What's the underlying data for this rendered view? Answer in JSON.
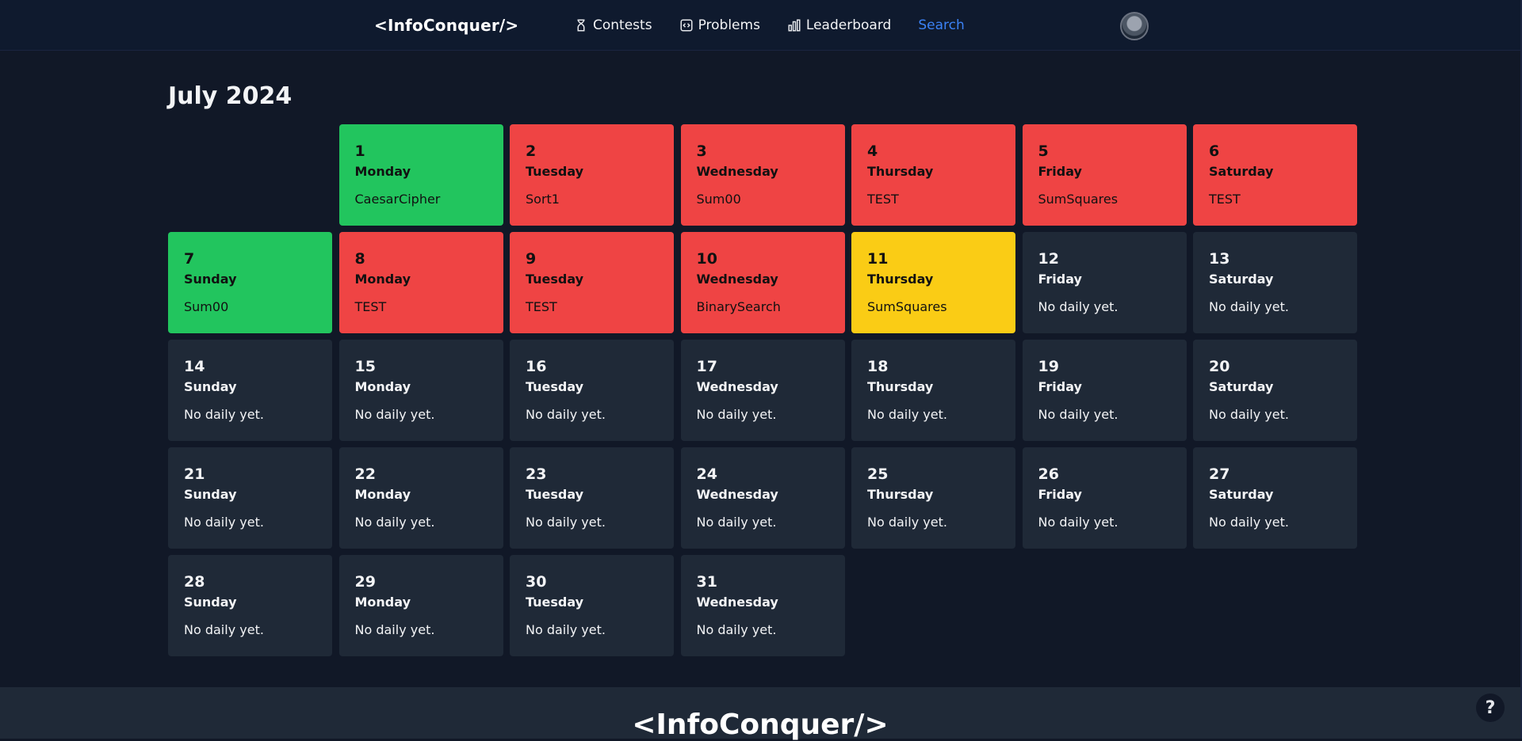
{
  "header": {
    "logo": "<InfoConquer/>",
    "nav": [
      {
        "label": "Contests",
        "icon": "hourglass-icon"
      },
      {
        "label": "Problems",
        "icon": "code-icon"
      },
      {
        "label": "Leaderboard",
        "icon": "bar-chart-icon"
      },
      {
        "label": "Search"
      }
    ]
  },
  "calendar": {
    "title": "July 2024",
    "days": [
      {
        "num": "1",
        "name": "Monday",
        "problem": "CaesarCipher",
        "status": "green"
      },
      {
        "num": "2",
        "name": "Tuesday",
        "problem": "Sort1",
        "status": "red"
      },
      {
        "num": "3",
        "name": "Wednesday",
        "problem": "Sum00",
        "status": "red"
      },
      {
        "num": "4",
        "name": "Thursday",
        "problem": "TEST",
        "status": "red"
      },
      {
        "num": "5",
        "name": "Friday",
        "problem": "SumSquares",
        "status": "red"
      },
      {
        "num": "6",
        "name": "Saturday",
        "problem": "TEST",
        "status": "red"
      },
      {
        "num": "7",
        "name": "Sunday",
        "problem": "Sum00",
        "status": "green"
      },
      {
        "num": "8",
        "name": "Monday",
        "problem": "TEST",
        "status": "red"
      },
      {
        "num": "9",
        "name": "Tuesday",
        "problem": "TEST",
        "status": "red"
      },
      {
        "num": "10",
        "name": "Wednesday",
        "problem": "BinarySearch",
        "status": "red"
      },
      {
        "num": "11",
        "name": "Thursday",
        "problem": "SumSquares",
        "status": "yellow"
      },
      {
        "num": "12",
        "name": "Friday",
        "problem": "No daily yet.",
        "status": "none"
      },
      {
        "num": "13",
        "name": "Saturday",
        "problem": "No daily yet.",
        "status": "none"
      },
      {
        "num": "14",
        "name": "Sunday",
        "problem": "No daily yet.",
        "status": "none"
      },
      {
        "num": "15",
        "name": "Monday",
        "problem": "No daily yet.",
        "status": "none"
      },
      {
        "num": "16",
        "name": "Tuesday",
        "problem": "No daily yet.",
        "status": "none"
      },
      {
        "num": "17",
        "name": "Wednesday",
        "problem": "No daily yet.",
        "status": "none"
      },
      {
        "num": "18",
        "name": "Thursday",
        "problem": "No daily yet.",
        "status": "none"
      },
      {
        "num": "19",
        "name": "Friday",
        "problem": "No daily yet.",
        "status": "none"
      },
      {
        "num": "20",
        "name": "Saturday",
        "problem": "No daily yet.",
        "status": "none"
      },
      {
        "num": "21",
        "name": "Sunday",
        "problem": "No daily yet.",
        "status": "none"
      },
      {
        "num": "22",
        "name": "Monday",
        "problem": "No daily yet.",
        "status": "none"
      },
      {
        "num": "23",
        "name": "Tuesday",
        "problem": "No daily yet.",
        "status": "none"
      },
      {
        "num": "24",
        "name": "Wednesday",
        "problem": "No daily yet.",
        "status": "none"
      },
      {
        "num": "25",
        "name": "Thursday",
        "problem": "No daily yet.",
        "status": "none"
      },
      {
        "num": "26",
        "name": "Friday",
        "problem": "No daily yet.",
        "status": "none"
      },
      {
        "num": "27",
        "name": "Saturday",
        "problem": "No daily yet.",
        "status": "none"
      },
      {
        "num": "28",
        "name": "Sunday",
        "problem": "No daily yet.",
        "status": "none"
      },
      {
        "num": "29",
        "name": "Monday",
        "problem": "No daily yet.",
        "status": "none"
      },
      {
        "num": "30",
        "name": "Tuesday",
        "problem": "No daily yet.",
        "status": "none"
      },
      {
        "num": "31",
        "name": "Wednesday",
        "problem": "No daily yet.",
        "status": "none"
      }
    ]
  },
  "footer": {
    "logo": "<InfoConquer/>"
  },
  "help": {
    "label": "?"
  },
  "colors": {
    "solved": "#22c55e",
    "failed": "#ef4444",
    "attempted": "#facc15",
    "link": "#3b82f6"
  }
}
